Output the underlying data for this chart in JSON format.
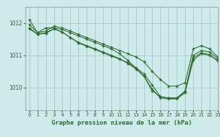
{
  "title": "Graphe pression niveau de la mer (hPa)",
  "bg_color": "#ceeaea",
  "grid_color": "#aacccc",
  "line_color": "#2d6b2d",
  "xlim": [
    -0.5,
    23
  ],
  "ylim": [
    1009.3,
    1012.5
  ],
  "yticks": [
    1010,
    1011,
    1012
  ],
  "xticks": [
    0,
    1,
    2,
    3,
    4,
    5,
    6,
    7,
    8,
    9,
    10,
    11,
    12,
    13,
    14,
    15,
    16,
    17,
    18,
    19,
    20,
    21,
    22,
    23
  ],
  "series": [
    [
      1011.95,
      1011.7,
      1011.75,
      1011.9,
      1011.85,
      1011.75,
      1011.65,
      1011.55,
      1011.45,
      1011.35,
      1011.25,
      1011.15,
      1011.05,
      1010.95,
      1010.8,
      1010.5,
      1010.25,
      1010.05,
      1010.05,
      1010.15,
      1011.2,
      1011.3,
      1011.2,
      1010.95
    ],
    [
      1012.1,
      1011.7,
      1011.85,
      1011.85,
      1011.8,
      1011.7,
      1011.6,
      1011.5,
      1011.4,
      1011.3,
      1011.2,
      1011.05,
      1010.85,
      1010.6,
      1010.35,
      1009.9,
      1009.72,
      1009.68,
      1009.68,
      1009.9,
      1011.0,
      1011.15,
      1011.1,
      1010.9
    ],
    [
      1011.85,
      1011.65,
      1011.7,
      1011.82,
      1011.72,
      1011.55,
      1011.4,
      1011.3,
      1011.2,
      1011.1,
      1011.0,
      1010.9,
      1010.75,
      1010.58,
      1010.35,
      1009.95,
      1009.68,
      1009.65,
      1009.65,
      1009.85,
      1010.85,
      1011.05,
      1011.0,
      1010.85
    ],
    [
      1011.82,
      1011.65,
      1011.68,
      1011.82,
      1011.72,
      1011.55,
      1011.38,
      1011.28,
      1011.18,
      1011.08,
      1010.98,
      1010.88,
      1010.78,
      1010.62,
      1010.42,
      1010.08,
      1009.72,
      1009.68,
      1009.68,
      1009.85,
      1010.92,
      1011.08,
      1011.02,
      1010.82
    ]
  ]
}
